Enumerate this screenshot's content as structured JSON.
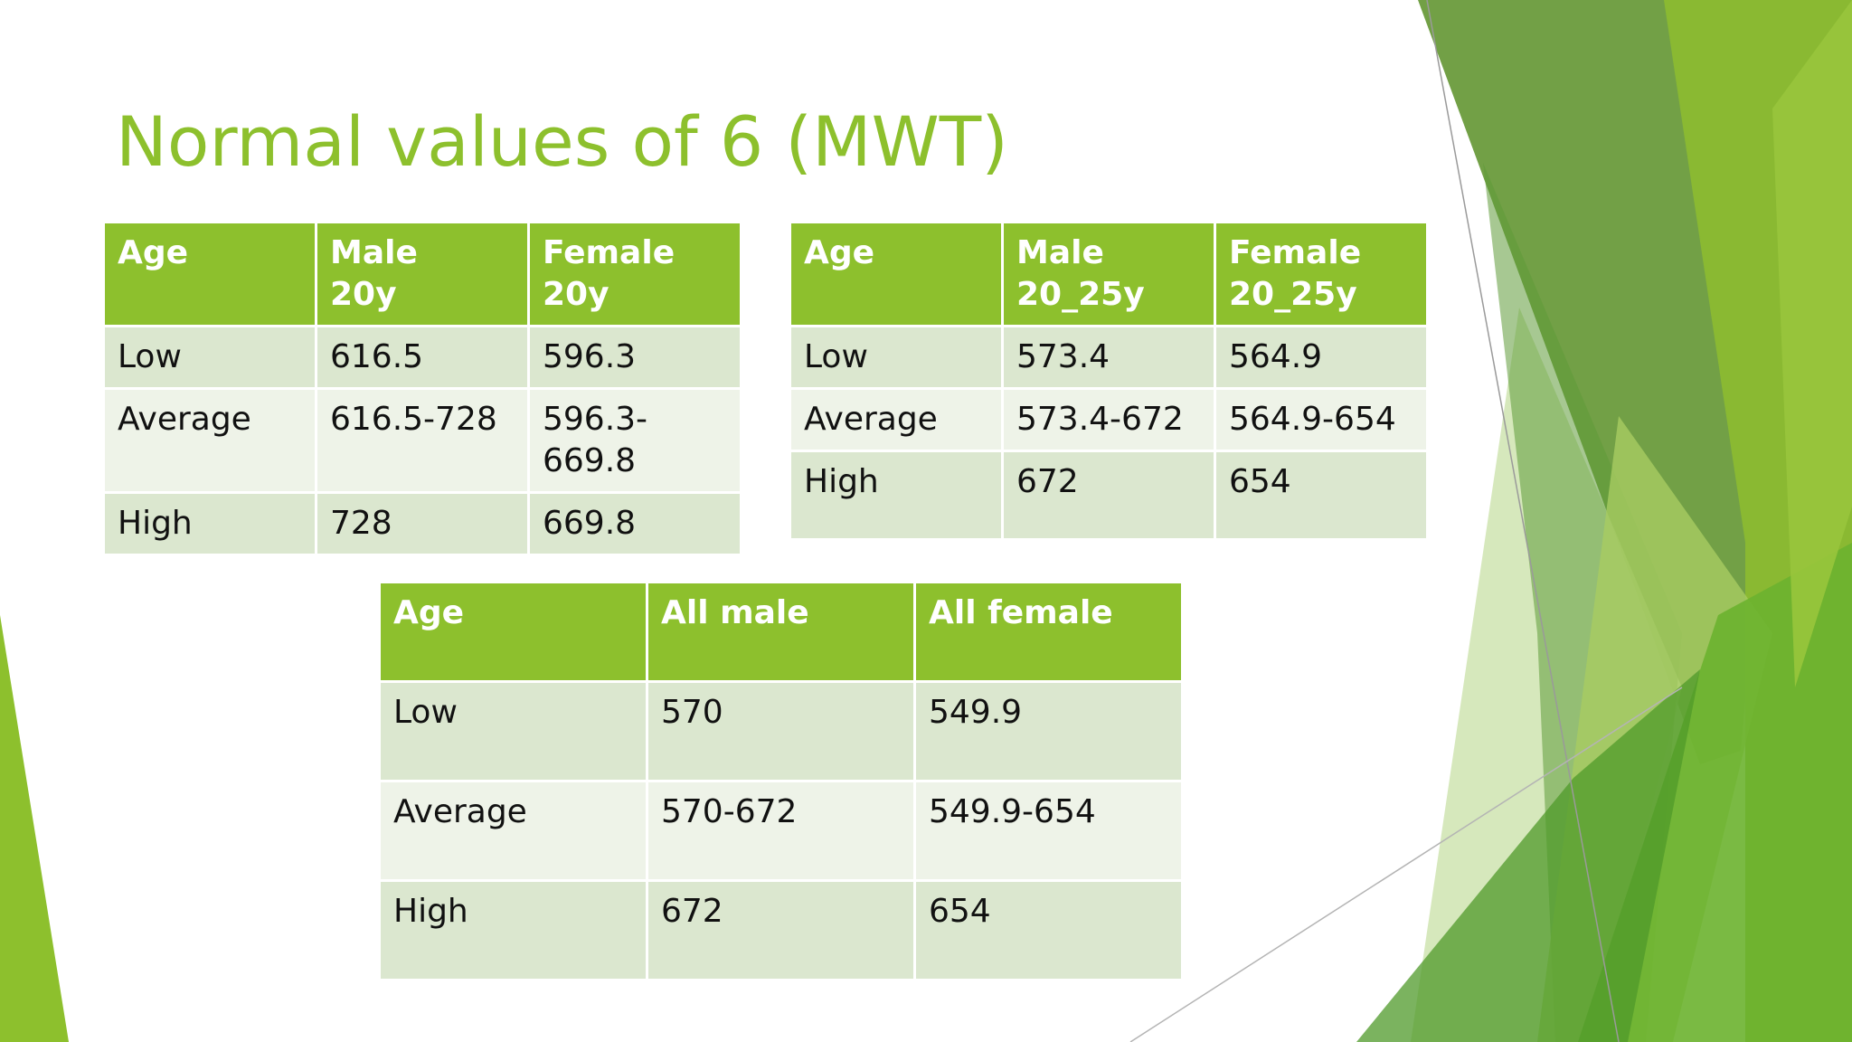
{
  "slide": {
    "title": "Normal values of 6 (MWT)",
    "colors": {
      "accent": "#8dc02d",
      "header_text": "#ffffff",
      "row_dark": "#dbe7cf",
      "row_light": "#eef3e8"
    }
  },
  "table1": {
    "headers": [
      [
        "Age"
      ],
      [
        "Male",
        "20y"
      ],
      [
        "Female",
        "20y"
      ]
    ],
    "rows": [
      [
        [
          "Low"
        ],
        [
          "616.5"
        ],
        [
          "596.3"
        ]
      ],
      [
        [
          "Average"
        ],
        [
          "616.5-728"
        ],
        [
          "596.3-",
          "669.8"
        ]
      ],
      [
        [
          "High"
        ],
        [
          "728"
        ],
        [
          "669.8"
        ]
      ]
    ]
  },
  "table2": {
    "headers": [
      [
        "Age"
      ],
      [
        "Male",
        "20_25y"
      ],
      [
        "Female",
        "20_25y"
      ]
    ],
    "rows": [
      [
        [
          "Low"
        ],
        [
          "573.4"
        ],
        [
          "564.9"
        ]
      ],
      [
        [
          "Average"
        ],
        [
          "573.4-672"
        ],
        [
          "564.9-654"
        ]
      ],
      [
        [
          "High"
        ],
        [
          "672"
        ],
        [
          "654"
        ]
      ]
    ]
  },
  "table3": {
    "headers": [
      [
        "Age"
      ],
      [
        "All male"
      ],
      [
        "All female"
      ]
    ],
    "rows": [
      [
        [
          "Low"
        ],
        [
          "570"
        ],
        [
          "549.9"
        ]
      ],
      [
        [
          "Average"
        ],
        [
          "570-672"
        ],
        [
          "549.9-654"
        ]
      ],
      [
        [
          "High"
        ],
        [
          "672"
        ],
        [
          "654"
        ]
      ]
    ]
  }
}
